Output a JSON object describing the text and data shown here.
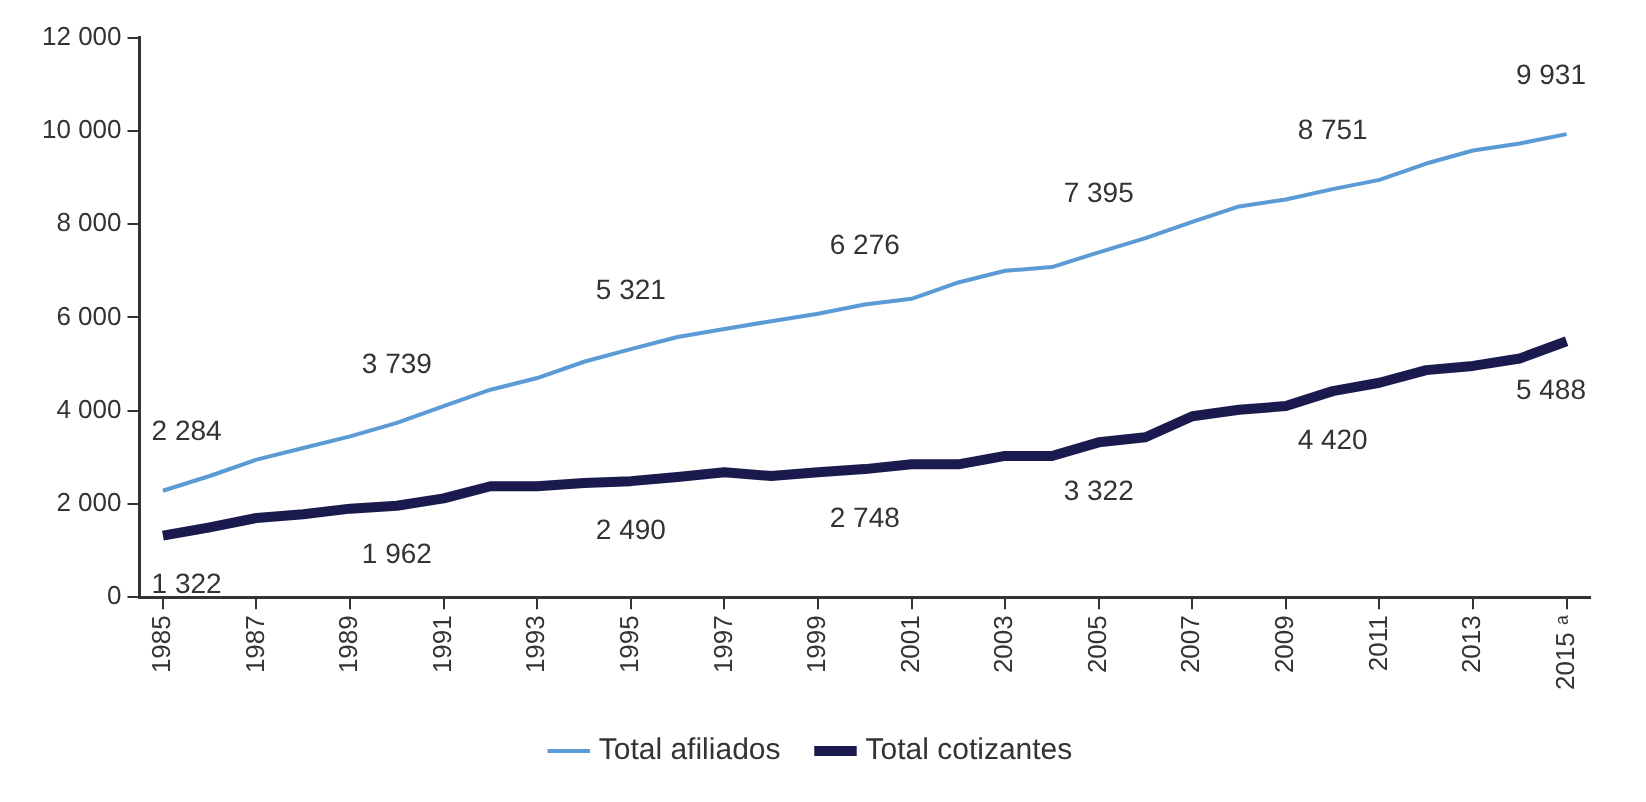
{
  "chart_data": {
    "type": "line",
    "categories": [
      "1985",
      null,
      "1987",
      null,
      "1989",
      null,
      "1991",
      null,
      "1993",
      null,
      "1995",
      null,
      "1997",
      null,
      "1999",
      null,
      "2001",
      null,
      "2003",
      null,
      "2005",
      null,
      "2007",
      null,
      "2009",
      null,
      "2011",
      null,
      "2013",
      null,
      "2015 ᵃ"
    ],
    "series": [
      {
        "name": "Total afiliados",
        "color": "#5b9bd5",
        "values": [
          2284,
          2600,
          2950,
          3200,
          3450,
          3739,
          4100,
          4450,
          4700,
          5050,
          5321,
          5580,
          5750,
          5920,
          6080,
          6276,
          6400,
          6750,
          7000,
          7080,
          7395,
          7700,
          8050,
          8380,
          8530,
          8751,
          8950,
          9300,
          9580,
          9730,
          9931
        ],
        "value_labels": [
          "2 284",
          null,
          null,
          null,
          null,
          "3 739",
          null,
          null,
          null,
          null,
          "5 321",
          null,
          null,
          null,
          null,
          "6 276",
          null,
          null,
          null,
          null,
          "7 395",
          null,
          null,
          null,
          null,
          "8 751",
          null,
          null,
          null,
          null,
          "9 931"
        ]
      },
      {
        "name": "Total cotizantes",
        "color": "#1a1a4e",
        "values": [
          1322,
          1500,
          1700,
          1780,
          1900,
          1962,
          2120,
          2380,
          2380,
          2450,
          2490,
          2580,
          2680,
          2600,
          2680,
          2748,
          2850,
          2850,
          3030,
          3030,
          3322,
          3430,
          3880,
          4020,
          4100,
          4420,
          4600,
          4870,
          4960,
          5120,
          5488
        ],
        "value_labels": [
          "1 322",
          null,
          null,
          null,
          null,
          "1 962",
          null,
          null,
          null,
          null,
          "2 490",
          null,
          null,
          null,
          null,
          "2 748",
          null,
          null,
          null,
          null,
          "3 322",
          null,
          null,
          null,
          null,
          "4 420",
          null,
          null,
          null,
          null,
          "5 488"
        ]
      }
    ],
    "ylim": [
      0,
      12000
    ],
    "yticks": [
      0,
      {
        "value": 2000,
        "label": "2 000"
      },
      {
        "value": 4000,
        "label": "4 000"
      },
      {
        "value": 6000,
        "label": "6 000"
      },
      {
        "value": 8000,
        "label": "8 000"
      },
      {
        "value": 10000,
        "label": "10 000"
      },
      {
        "value": 12000,
        "label": "12 000"
      }
    ],
    "grid": false,
    "legend": "bottom",
    "marker": "none",
    "line_style": "solid"
  }
}
